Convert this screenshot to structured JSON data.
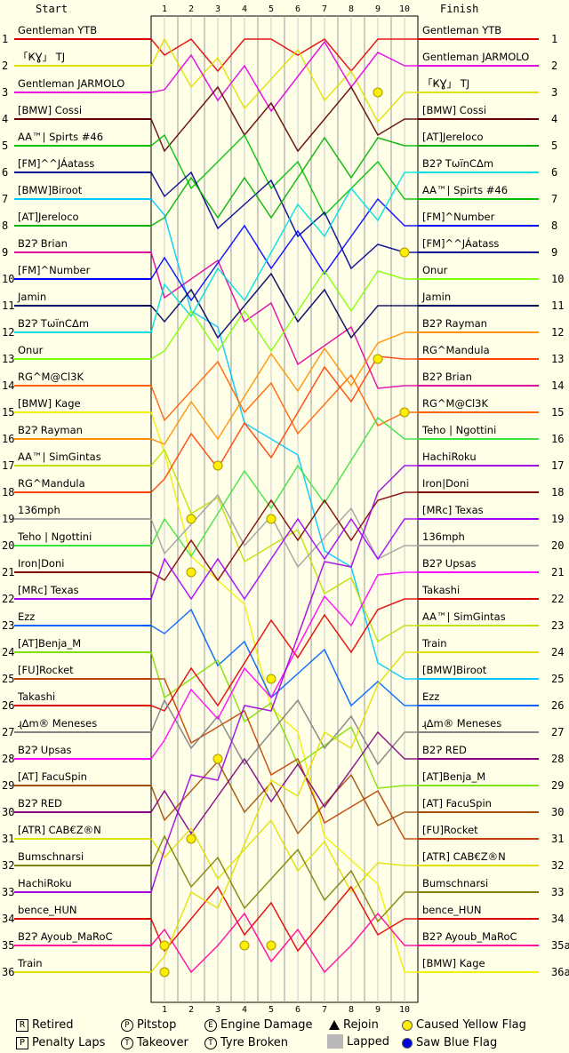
{
  "chart_data": {
    "type": "line",
    "title": "",
    "header": {
      "start": "Start",
      "finish": "Finish"
    },
    "laps": [
      1,
      2,
      3,
      4,
      5,
      6,
      7,
      8,
      9,
      10
    ],
    "start_order": [
      "Gentleman YTB",
      "「ҜƔ」 TJ",
      "Gentleman JARMOLO",
      "[BMW] Cossi",
      "AA™| Spirts #46",
      "[FM]^^JÁatass",
      "[BMW]Biroot",
      "[AT]Jereloco",
      "B2Ɂ Brian",
      "[FM]^Number",
      "Jamin",
      "B2Ɂ TωïnCΔm",
      "Onur",
      "RG^M@Cl3K",
      "[BMW] Kage",
      "B2Ɂ Rayman",
      "AA™| SimGintas",
      "RG^Mandula",
      "136mph",
      "Teho | Ngottini",
      "Iron|Doni",
      "[MRc] Texas",
      "Ezz",
      "[AT]Benja_M",
      "[FU]Rocket",
      "Takashi",
      "ɻ∆m® Meneses",
      "B2Ɂ Upsas",
      "[AT] FacuSpin",
      "B2Ɂ RED",
      "[ATR] CAB€Z®N",
      "Bumschnarsi",
      "HachiRoku",
      "bence_HUN",
      "B2Ɂ Ayoub_MaRoC",
      "Train"
    ],
    "finish_order": [
      "Gentleman YTB",
      "Gentleman JARMOLO",
      "「ҜƔ」 TJ",
      "[BMW] Cossi",
      "[AT]Jereloco",
      "B2Ɂ TωïnCΔm",
      "AA™| Spirts #46",
      "[FM]^Number",
      "[FM]^^JÁatass",
      "Onur",
      "Jamin",
      "B2Ɂ Rayman",
      "RG^Mandula",
      "B2Ɂ Brian",
      "RG^M@Cl3K",
      "Teho | Ngottini",
      "HachiRoku",
      "Iron|Doni",
      "[MRc] Texas",
      "136mph",
      "B2Ɂ Upsas",
      "Takashi",
      "AA™| SimGintas",
      "Train",
      "[BMW]Biroot",
      "Ezz",
      "ɻ∆m® Meneses",
      "B2Ɂ RED",
      "[AT]Benja_M",
      "[AT] FacuSpin",
      "[FU]Rocket",
      "[ATR] CAB€Z®N",
      "Bumschnarsi",
      "bence_HUN",
      "B2Ɂ Ayoub_MaRoC",
      "[BMW] Kage"
    ],
    "start_positions": [
      "1",
      "2",
      "3",
      "4",
      "5",
      "6",
      "7",
      "8",
      "9",
      "10",
      "11",
      "12",
      "13",
      "14",
      "15",
      "16",
      "17",
      "18",
      "19",
      "20",
      "21",
      "22",
      "23",
      "24",
      "25",
      "26",
      "27",
      "28",
      "29",
      "30",
      "31",
      "32",
      "33",
      "34",
      "35",
      "36"
    ],
    "finish_positions": [
      "1",
      "2",
      "3",
      "4",
      "5",
      "6",
      "7",
      "8",
      "9",
      "10",
      "11",
      "12",
      "13",
      "14",
      "15",
      "16",
      "17",
      "18",
      "19",
      "20",
      "21",
      "22",
      "23",
      "24",
      "25",
      "26",
      "27",
      "28",
      "29",
      "30",
      "31",
      "32",
      "33",
      "34",
      "35a",
      "36a"
    ],
    "colors": [
      "#e00000",
      "#e0e000",
      "#e000e0",
      "#600000",
      "#00c000",
      "#000090",
      "#00c8ff",
      "#00b000",
      "#e000a0",
      "#0000ff",
      "#000060",
      "#00e0e0",
      "#80ff00",
      "#ff6000",
      "#f0f000",
      "#ff9000",
      "#c0e000",
      "#ff4000",
      "#a0a0a0",
      "#40e040",
      "#800000",
      "#a000ff",
      "#0060ff",
      "#80e000",
      "#c04000",
      "#e00000",
      "#808080",
      "#ff00ff",
      "#a05000",
      "#800080",
      "#e0e000",
      "#808000",
      "#a000e0",
      "#e00000",
      "#ff00a0",
      "#e0e000"
    ],
    "legend": {
      "retired": "Retired",
      "penalty": "Penalty Laps",
      "pitstop": "Pitstop",
      "takeover": "Takeover",
      "engine": "Engine Damage",
      "tyre": "Tyre Broken",
      "rejoin": "Rejoin",
      "lapped": "Lapped",
      "yellow": "Caused Yellow Flag",
      "blue": "Saw Blue Flag"
    }
  }
}
